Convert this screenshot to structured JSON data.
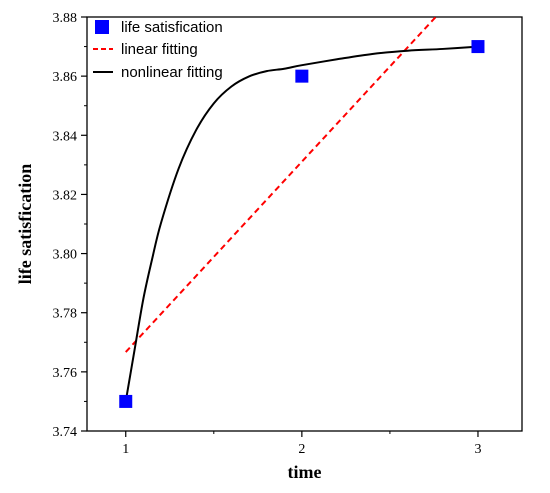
{
  "chart_data": {
    "type": "scatter",
    "xlabel": "time",
    "ylabel": "life satisfication",
    "xlim": [
      0.78,
      3.25
    ],
    "ylim": [
      3.74,
      3.88
    ],
    "x_ticks": [
      1,
      2,
      3
    ],
    "y_ticks": [
      3.74,
      3.76,
      3.78,
      3.8,
      3.82,
      3.84,
      3.86,
      3.88
    ],
    "x_tick_labels": [
      "1",
      "2",
      "3"
    ],
    "y_tick_labels": [
      "3.74",
      "3.76",
      "3.78",
      "3.80",
      "3.82",
      "3.84",
      "3.86",
      "3.88"
    ],
    "grid": false,
    "legend_position": "top-left",
    "series": [
      {
        "name": "life satisfication",
        "style": "markers",
        "marker": "square",
        "color": "#0000ff",
        "x": [
          1,
          2,
          3
        ],
        "y": [
          3.75,
          3.86,
          3.87
        ]
      },
      {
        "name": "linear fitting",
        "style": "dashed-line",
        "color": "#ff0000",
        "x": [
          1,
          2.76
        ],
        "y": [
          3.7667,
          3.88
        ]
      },
      {
        "name": "nonlinear fitting",
        "style": "solid-line",
        "color": "#000000",
        "x": [
          1,
          1.05,
          1.1,
          1.15,
          1.2,
          1.3,
          1.4,
          1.5,
          1.6,
          1.7,
          1.8,
          1.9,
          2.0,
          2.2,
          2.4,
          2.6,
          2.8,
          3.0
        ],
        "y": [
          3.75,
          3.7674,
          3.7847,
          3.7982,
          3.8103,
          3.8287,
          3.8418,
          3.8508,
          3.8565,
          3.8599,
          3.8617,
          3.8625,
          3.8637,
          3.8657,
          3.8675,
          3.8686,
          3.8692,
          3.87
        ]
      }
    ]
  }
}
